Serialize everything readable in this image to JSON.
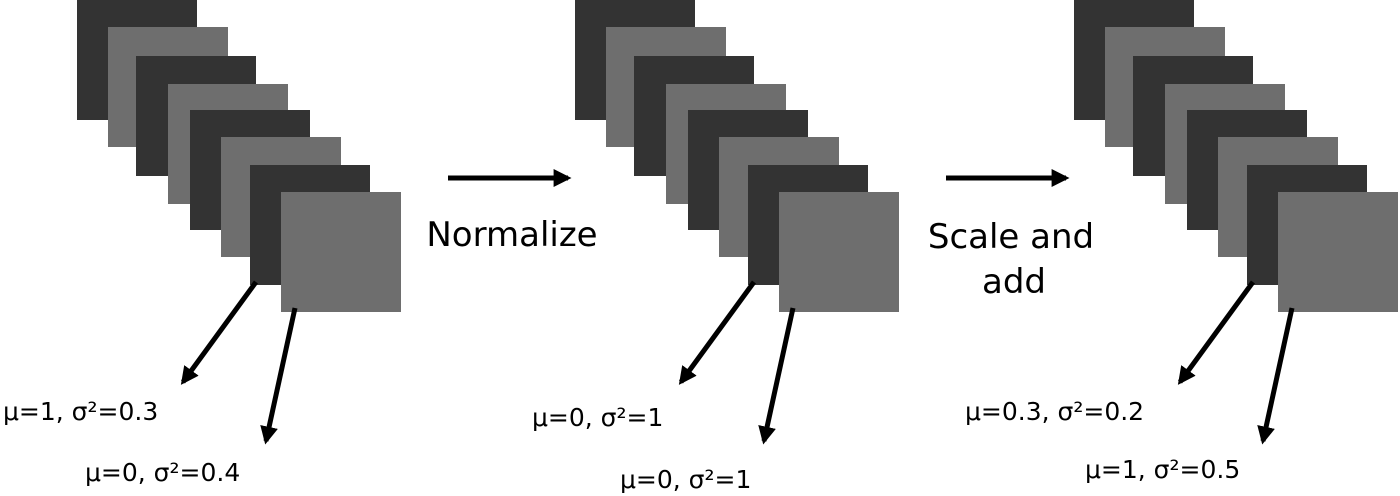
{
  "steps": [
    {
      "lines": [
        "Normalize"
      ]
    },
    {
      "lines": [
        "Scale and",
        "add"
      ]
    }
  ],
  "stacks": [
    {
      "labels": [
        "μ=1, σ²=0.3",
        "μ=0, σ²=0.4"
      ]
    },
    {
      "labels": [
        "μ=0, σ²=1",
        "μ=0, σ²=1"
      ]
    },
    {
      "labels": [
        "μ=0.3, σ²=0.2",
        "μ=1, σ²=0.5"
      ]
    }
  ],
  "colors": {
    "dark_square": "#333333",
    "light_square": "#6e6e6e",
    "arrow": "#000000",
    "background": "#ffffff"
  }
}
